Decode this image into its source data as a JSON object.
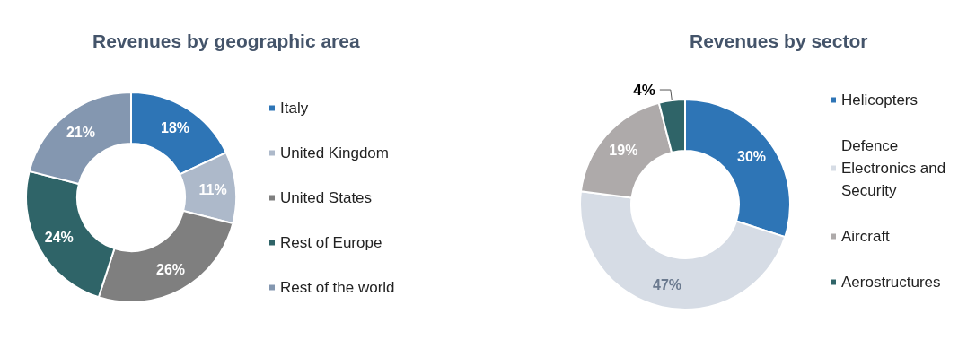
{
  "chart_data": [
    {
      "type": "donut",
      "title": "Revenues by geographic area",
      "categories": [
        "Italy",
        "United Kingdom",
        "United States",
        "Rest of Europe",
        "Rest of the world"
      ],
      "values": [
        18,
        11,
        26,
        24,
        21
      ],
      "colors": [
        "#2e75b6",
        "#adb9ca",
        "#7f7f7f",
        "#2f6468",
        "#8497b0"
      ],
      "legend": "right",
      "value_labels": [
        "18%",
        "11%",
        "26%",
        "24%",
        "21%"
      ]
    },
    {
      "type": "donut",
      "title": "Revenues by sector",
      "categories": [
        "Helicopters",
        "Defence Electronics and Security",
        "Aircraft",
        "Aerostructures"
      ],
      "values": [
        30,
        47,
        19,
        4
      ],
      "colors": [
        "#2e75b6",
        "#d6dce5",
        "#aeaaaa",
        "#2f6468"
      ],
      "legend": "right",
      "value_labels": [
        "30%",
        "47%",
        "19%",
        "4%"
      ]
    }
  ]
}
